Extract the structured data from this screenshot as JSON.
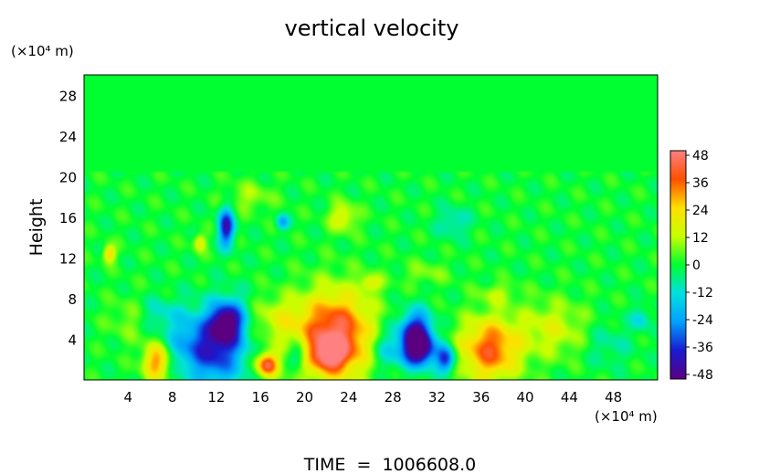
{
  "chart_data": {
    "type": "heatmap",
    "title": "vertical velocity",
    "xlabel": "",
    "ylabel": "Height",
    "x_unit": "(×10⁴ m)",
    "y_unit": "(×10⁴ m)",
    "footer": "TIME  =  1006608.0",
    "xlim": [
      0,
      52
    ],
    "ylim": [
      0,
      30
    ],
    "x_ticks": [
      4,
      8,
      12,
      16,
      20,
      24,
      28,
      32,
      36,
      40,
      44,
      48
    ],
    "y_ticks": [
      4,
      8,
      12,
      16,
      20,
      24,
      28
    ],
    "colorbar": {
      "min": -50,
      "max": 50,
      "ticks": [
        48,
        36,
        24,
        12,
        0,
        -12,
        -24,
        -36,
        -48
      ],
      "colors": [
        "#5a0080",
        "#1a1ad0",
        "#00a0ff",
        "#00e0e0",
        "#00ff30",
        "#c8ff00",
        "#ffe000",
        "#ff5000",
        "#ff8080"
      ]
    },
    "background_value": 0,
    "features": [
      {
        "x": 22.7,
        "y": 4.3,
        "sx": 2.4,
        "sy": 3.0,
        "value": 48
      },
      {
        "x": 22.3,
        "y": 2.6,
        "sx": 1.0,
        "sy": 1.0,
        "value": 30
      },
      {
        "x": 36.8,
        "y": 3.0,
        "sx": 1.9,
        "sy": 2.2,
        "value": 38
      },
      {
        "x": 6.6,
        "y": 1.8,
        "sx": 0.9,
        "sy": 1.3,
        "value": 34
      },
      {
        "x": 16.6,
        "y": 1.5,
        "sx": 0.7,
        "sy": 0.8,
        "value": 44
      },
      {
        "x": 12.0,
        "y": 3.2,
        "sx": 1.8,
        "sy": 2.6,
        "value": -38
      },
      {
        "x": 12.6,
        "y": 5.6,
        "sx": 0.8,
        "sy": 1.2,
        "value": -30
      },
      {
        "x": 13.6,
        "y": 6.0,
        "sx": 0.8,
        "sy": 1.5,
        "value": -20
      },
      {
        "x": 30.1,
        "y": 4.5,
        "sx": 1.0,
        "sy": 1.5,
        "value": -48
      },
      {
        "x": 30.4,
        "y": 2.8,
        "sx": 1.1,
        "sy": 1.1,
        "value": -38
      },
      {
        "x": 32.8,
        "y": 2.0,
        "sx": 0.6,
        "sy": 0.9,
        "value": -36
      },
      {
        "x": 12.9,
        "y": 15.0,
        "sx": 0.5,
        "sy": 1.3,
        "value": -42
      },
      {
        "x": 19.4,
        "y": 2.5,
        "sx": 0.6,
        "sy": 0.9,
        "value": -20
      },
      {
        "x": 27.4,
        "y": 3.0,
        "sx": 1.0,
        "sy": 1.5,
        "value": -16
      },
      {
        "x": 42.5,
        "y": 5.0,
        "sx": 2.2,
        "sy": 2.0,
        "value": 15
      },
      {
        "x": 9.0,
        "y": 3.5,
        "sx": 1.6,
        "sy": 2.0,
        "value": -14
      },
      {
        "x": 17.5,
        "y": 6.0,
        "sx": 1.5,
        "sy": 1.5,
        "value": 14
      },
      {
        "x": 2.3,
        "y": 12.4,
        "sx": 0.4,
        "sy": 0.6,
        "value": 26
      },
      {
        "x": 23.5,
        "y": 16.0,
        "sx": 0.9,
        "sy": 1.0,
        "value": 18
      },
      {
        "x": 18.0,
        "y": 15.5,
        "sx": 0.4,
        "sy": 0.5,
        "value": -22
      },
      {
        "x": 26.0,
        "y": 9.5,
        "sx": 0.7,
        "sy": 0.6,
        "value": 16
      },
      {
        "x": 6.5,
        "y": 6.5,
        "sx": 1.5,
        "sy": 1.2,
        "value": -12
      },
      {
        "x": 47.5,
        "y": 3.5,
        "sx": 1.5,
        "sy": 1.5,
        "value": -8
      },
      {
        "x": 4.5,
        "y": 6.0,
        "sx": 1.5,
        "sy": 1.5,
        "value": 10
      },
      {
        "x": 37.5,
        "y": 8.5,
        "sx": 1.2,
        "sy": 0.7,
        "value": 10
      },
      {
        "x": 10.5,
        "y": 13.5,
        "sx": 0.4,
        "sy": 0.6,
        "value": 20
      },
      {
        "x": 50.5,
        "y": 6.0,
        "sx": 0.6,
        "sy": 0.8,
        "value": -14
      },
      {
        "x": 33.5,
        "y": 15.5,
        "sx": 1.0,
        "sy": 1.0,
        "value": -12
      },
      {
        "x": 15.0,
        "y": 18.0,
        "sx": 1.5,
        "sy": 1.0,
        "value": 10
      },
      {
        "x": 31.0,
        "y": 10.5,
        "sx": 1.5,
        "sy": 0.8,
        "value": 8
      }
    ]
  }
}
